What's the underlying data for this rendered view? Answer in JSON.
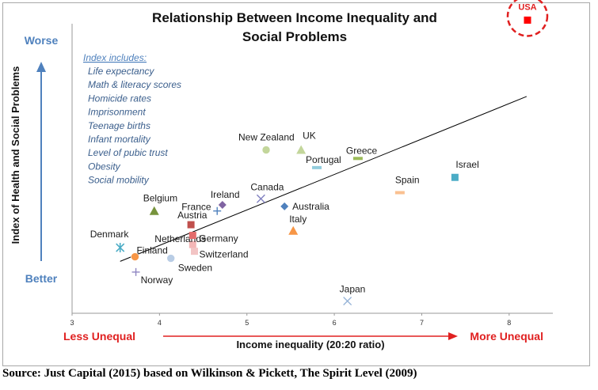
{
  "chart_data": {
    "type": "scatter",
    "title": [
      "Relationship Between Income Inequality and",
      "Social Problems"
    ],
    "xlabel": "Income inequality (20:20 ratio)",
    "ylabel": "Index of Health and Social Problems",
    "xlim": [
      3,
      8.5
    ],
    "xticks": [
      "3",
      "4",
      "5",
      "6",
      "7",
      "8"
    ],
    "ylim": [
      0,
      100
    ],
    "grid": false,
    "y_direction_labels": {
      "top": "Worse",
      "bottom": "Better"
    },
    "x_direction_labels": {
      "left": "Less Unequal",
      "right": "More Unequal"
    },
    "index_note": {
      "heading": "Index includes:",
      "items": [
        "Life expectancy",
        "Math & literacy scores",
        "Homicide rates",
        "Imprisonment",
        "Teenage births",
        "Infant mortality",
        "Level of pubic trust",
        "Obesity",
        "Social mobility"
      ]
    },
    "points": [
      {
        "label": "Denmark",
        "x": 3.55,
        "y": 21.5,
        "marker": "star",
        "color": "#4bacc6"
      },
      {
        "label": "Finland",
        "x": 3.72,
        "y": 18.5,
        "marker": "circle",
        "color": "#f79646"
      },
      {
        "label": "Norway",
        "x": 3.73,
        "y": 13.5,
        "marker": "plus",
        "color": "#8f86c2"
      },
      {
        "label": "Belgium",
        "x": 3.94,
        "y": 33.5,
        "marker": "triangle",
        "color": "#77933c"
      },
      {
        "label": "Sweden",
        "x": 4.13,
        "y": 18.0,
        "marker": "circle",
        "color": "#b9cde5"
      },
      {
        "label": "Austria",
        "x": 4.36,
        "y": 29.0,
        "marker": "square",
        "color": "#c0504d"
      },
      {
        "label": "Netherlands",
        "x": 4.38,
        "y": 22.5,
        "marker": "square",
        "color": "#f4b6b6"
      },
      {
        "label": "Germany",
        "x": 4.38,
        "y": 25.5,
        "marker": "square",
        "color": "#e46c6c"
      },
      {
        "label": "Switzerland",
        "x": 4.4,
        "y": 20.3,
        "marker": "square",
        "color": "#f2c4c4"
      },
      {
        "label": "France",
        "x": 4.66,
        "y": 33.5,
        "marker": "plus",
        "color": "#4f81bd"
      },
      {
        "label": "Ireland",
        "x": 4.72,
        "y": 35.5,
        "marker": "diamond",
        "color": "#8064a2"
      },
      {
        "label": "Canada",
        "x": 5.16,
        "y": 37.5,
        "marker": "x",
        "color": "#8080c0"
      },
      {
        "label": "New Zealand",
        "x": 5.22,
        "y": 53.5,
        "marker": "circle",
        "color": "#c3d69b"
      },
      {
        "label": "Australia",
        "x": 5.43,
        "y": 35.0,
        "marker": "diamond",
        "color": "#4f81bd"
      },
      {
        "label": "Italy",
        "x": 5.53,
        "y": 27.0,
        "marker": "triangle",
        "color": "#f79646"
      },
      {
        "label": "UK",
        "x": 5.62,
        "y": 53.5,
        "marker": "triangle",
        "color": "#c3d69b"
      },
      {
        "label": "Portugal",
        "x": 5.8,
        "y": 47.7,
        "marker": "dash",
        "color": "#93cddd"
      },
      {
        "label": "Greece",
        "x": 6.27,
        "y": 50.7,
        "marker": "dash",
        "color": "#9bbb59"
      },
      {
        "label": "Spain",
        "x": 6.75,
        "y": 39.5,
        "marker": "dash",
        "color": "#fac090"
      },
      {
        "label": "Israel",
        "x": 7.38,
        "y": 44.5,
        "marker": "square",
        "color": "#4bacc6"
      },
      {
        "label": "Japan",
        "x": 6.15,
        "y": 4.0,
        "marker": "x",
        "color": "#95b3d7"
      },
      {
        "label": "USA",
        "x": 8.21,
        "y": 96.0,
        "marker": "square",
        "color": "#ff0000",
        "highlight": true
      }
    ],
    "trendline": {
      "x": [
        3.55,
        8.2
      ],
      "y": [
        17.0,
        71.0
      ],
      "color": "#000000"
    }
  },
  "source_note": "Source: Just Capital (2015) based on Wilkinson & Pickett, The Spirit Level (2009)"
}
